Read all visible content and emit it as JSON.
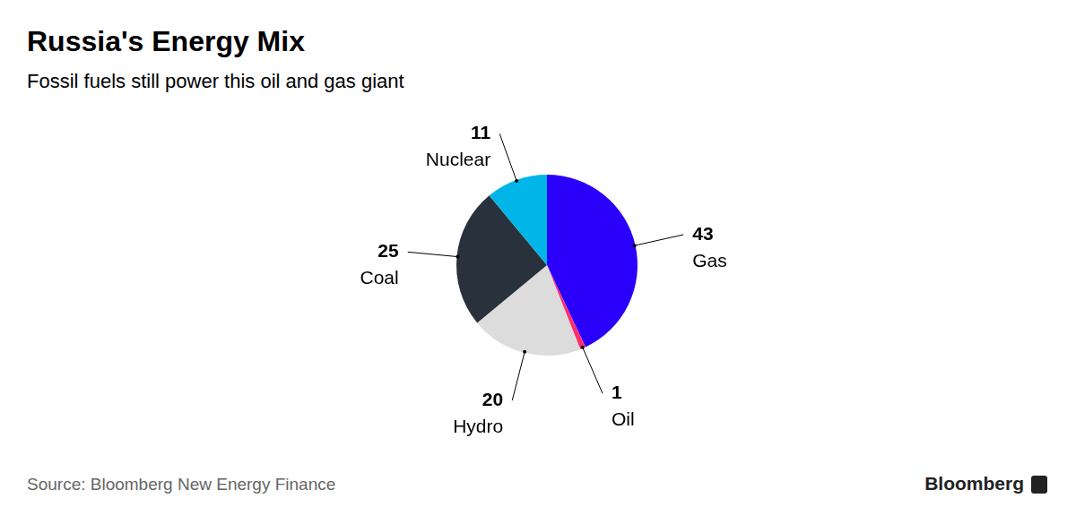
{
  "chart_data": {
    "type": "pie",
    "title": "Russia's Energy Mix",
    "subtitle": "Fossil fuels still power this oil and gas giant",
    "categories": [
      "Gas",
      "Oil",
      "Hydro",
      "Coal",
      "Nuclear"
    ],
    "values": [
      43,
      1,
      20,
      25,
      11
    ],
    "colors": [
      "#2a00fa",
      "#ff2d6f",
      "#dcdcdc",
      "#29323c",
      "#00b6e8"
    ],
    "data_labels": true,
    "source": "Source: Bloomberg New Energy Finance",
    "credit": "Bloomberg"
  }
}
